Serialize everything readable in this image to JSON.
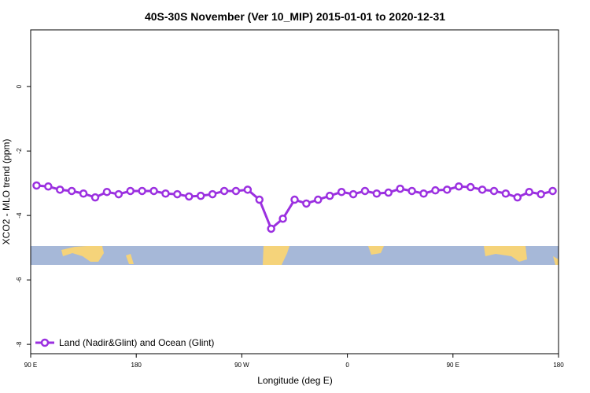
{
  "chart_data": {
    "type": "line",
    "title": "40S-30S November (Ver 10_MIP)   2015-01-01 to 2020-12-31",
    "x_label": "Longitude (deg E)",
    "y_label": "XCO2 - MLO trend (ppm)",
    "x": [
      95,
      105,
      115,
      125,
      135,
      145,
      155,
      165,
      175,
      185,
      195,
      205,
      215,
      225,
      235,
      245,
      255,
      265,
      275,
      285,
      295,
      305,
      315,
      325,
      335,
      345,
      355,
      365,
      375,
      385,
      395,
      405,
      415,
      425,
      435,
      445,
      455,
      465,
      475,
      485,
      495,
      505,
      515,
      525,
      535
    ],
    "series": [
      {
        "name": "Land (Nadir&Glint) and Ocean (Glint)",
        "color": "#9b30e0",
        "values": [
          -3.07,
          -3.1,
          -3.2,
          -3.24,
          -3.32,
          -3.44,
          -3.27,
          -3.34,
          -3.24,
          -3.24,
          -3.24,
          -3.32,
          -3.34,
          -3.41,
          -3.39,
          -3.34,
          -3.24,
          -3.24,
          -3.2,
          -3.51,
          -4.41,
          -4.1,
          -3.51,
          -3.63,
          -3.51,
          -3.39,
          -3.27,
          -3.34,
          -3.24,
          -3.32,
          -3.29,
          -3.17,
          -3.24,
          -3.32,
          -3.22,
          -3.2,
          -3.1,
          -3.12,
          -3.2,
          -3.24,
          -3.32,
          -3.44,
          -3.27,
          -3.34,
          -3.24
        ]
      }
    ],
    "xlim": [
      90,
      540
    ],
    "ylim": [
      -8.29,
      1.76
    ],
    "xticks": [
      {
        "value": 90,
        "label": "90 E"
      },
      180,
      {
        "value": 270,
        "label": "90 W"
      },
      {
        "value": 360,
        "label": "0"
      },
      {
        "value": 450,
        "label": "90 E"
      },
      {
        "value": 540,
        "label": "180"
      }
    ],
    "yticks": [
      0,
      -2,
      -4,
      -6,
      -8
    ],
    "legend": "lower left"
  }
}
